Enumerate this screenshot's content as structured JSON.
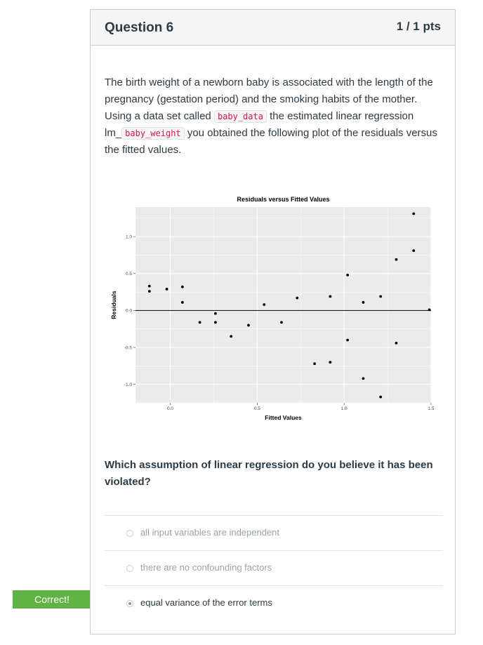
{
  "question": {
    "title": "Question 6",
    "points": "1 / 1 pts",
    "text": {
      "part1": "The birth weight of a newborn baby is associated with the length of the pregnancy (gestation period) and the smoking habits of the mother. Using a data set called ",
      "code1": "baby_data",
      "part2": " the estimated linear regression lm_",
      "code2": "baby_weight",
      "part3": " you obtained the following plot of the residuals versus the fitted values."
    },
    "prompt": "Which assumption of linear regression do you believe it has been violated?",
    "answers": [
      {
        "label": "all input variables are independent",
        "selected": false
      },
      {
        "label": "there are no confounding factors",
        "selected": false
      },
      {
        "label": "equal variance of the error terms",
        "selected": true
      }
    ],
    "feedback": "Correct!"
  },
  "chart_data": {
    "type": "scatter",
    "title": "Residuals versus Fitted Values",
    "xlabel": "Fitted Values",
    "ylabel": "Residuals",
    "xlim": [
      -0.2,
      1.5
    ],
    "ylim": [
      -1.25,
      1.4
    ],
    "xticks": [
      "0.0",
      "0.5",
      "1.0",
      "1.5"
    ],
    "yticks": [
      "1.0",
      "0.5",
      "0.0",
      "-0.5",
      "-1.0"
    ],
    "reference_line": 0,
    "grid": true,
    "points": [
      {
        "x": -0.12,
        "y": 0.33
      },
      {
        "x": -0.12,
        "y": 0.26
      },
      {
        "x": -0.02,
        "y": 0.29
      },
      {
        "x": 0.07,
        "y": 0.32
      },
      {
        "x": 0.07,
        "y": 0.11
      },
      {
        "x": 0.17,
        "y": -0.16
      },
      {
        "x": 0.26,
        "y": -0.04
      },
      {
        "x": 0.26,
        "y": -0.16
      },
      {
        "x": 0.35,
        "y": -0.35
      },
      {
        "x": 0.45,
        "y": -0.2
      },
      {
        "x": 0.54,
        "y": 0.08
      },
      {
        "x": 0.64,
        "y": -0.16
      },
      {
        "x": 0.73,
        "y": 0.17
      },
      {
        "x": 0.83,
        "y": -0.72
      },
      {
        "x": 0.92,
        "y": -0.7
      },
      {
        "x": 0.92,
        "y": 0.19
      },
      {
        "x": 1.02,
        "y": 0.48
      },
      {
        "x": 1.02,
        "y": -0.4
      },
      {
        "x": 1.11,
        "y": 0.11
      },
      {
        "x": 1.11,
        "y": -0.92
      },
      {
        "x": 1.21,
        "y": -1.17
      },
      {
        "x": 1.21,
        "y": 0.19
      },
      {
        "x": 1.3,
        "y": 0.69
      },
      {
        "x": 1.3,
        "y": -0.44
      },
      {
        "x": 1.4,
        "y": 1.31
      },
      {
        "x": 1.4,
        "y": 0.81
      },
      {
        "x": 1.49,
        "y": 0.01
      }
    ],
    "colors": {
      "panel": "#ebebeb",
      "grid": "#ffffff",
      "point": "#000000"
    }
  }
}
